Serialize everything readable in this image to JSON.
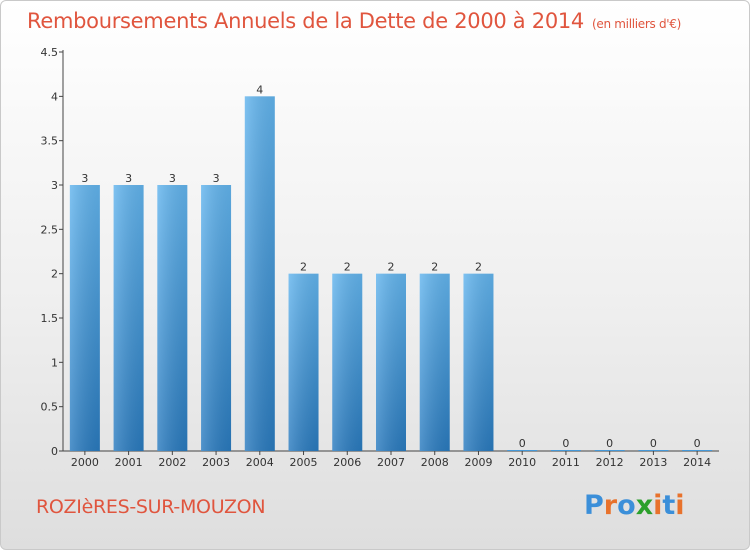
{
  "title": "Remboursements Annuels de la Dette de 2000 à 2014",
  "unit": "(en milliers d'€)",
  "commune": "ROZIèRES-SUR-MOUZON",
  "logo": {
    "text": "Proxiti",
    "letters": [
      "P",
      "r",
      "o",
      "x",
      "i",
      "t",
      "i"
    ],
    "colors": [
      "#3b8fd9",
      "#e8722c",
      "#3b8fd9",
      "#2ca02c",
      "#e8722c",
      "#3b8fd9",
      "#e8722c"
    ]
  },
  "colors": {
    "bar_top": "#63b5ee",
    "bar_bottom": "#2a7bbf",
    "title": "#e0553e"
  },
  "chart_data": {
    "type": "bar",
    "categories": [
      "2000",
      "2001",
      "2002",
      "2003",
      "2004",
      "2005",
      "2006",
      "2007",
      "2008",
      "2009",
      "2010",
      "2011",
      "2012",
      "2013",
      "2014"
    ],
    "values": [
      3,
      3,
      3,
      3,
      4,
      2,
      2,
      2,
      2,
      2,
      0,
      0,
      0,
      0,
      0
    ],
    "value_labels": [
      "3",
      "3",
      "3",
      "3",
      "4",
      "2",
      "2",
      "2",
      "2",
      "2",
      "0",
      "0",
      "0",
      "0",
      "0"
    ],
    "y_ticks": [
      "0",
      "0.5",
      "1",
      "1.5",
      "2",
      "2.5",
      "3",
      "3.5",
      "4",
      "4.5"
    ],
    "ylim": [
      0,
      4.5
    ],
    "grid": false
  }
}
